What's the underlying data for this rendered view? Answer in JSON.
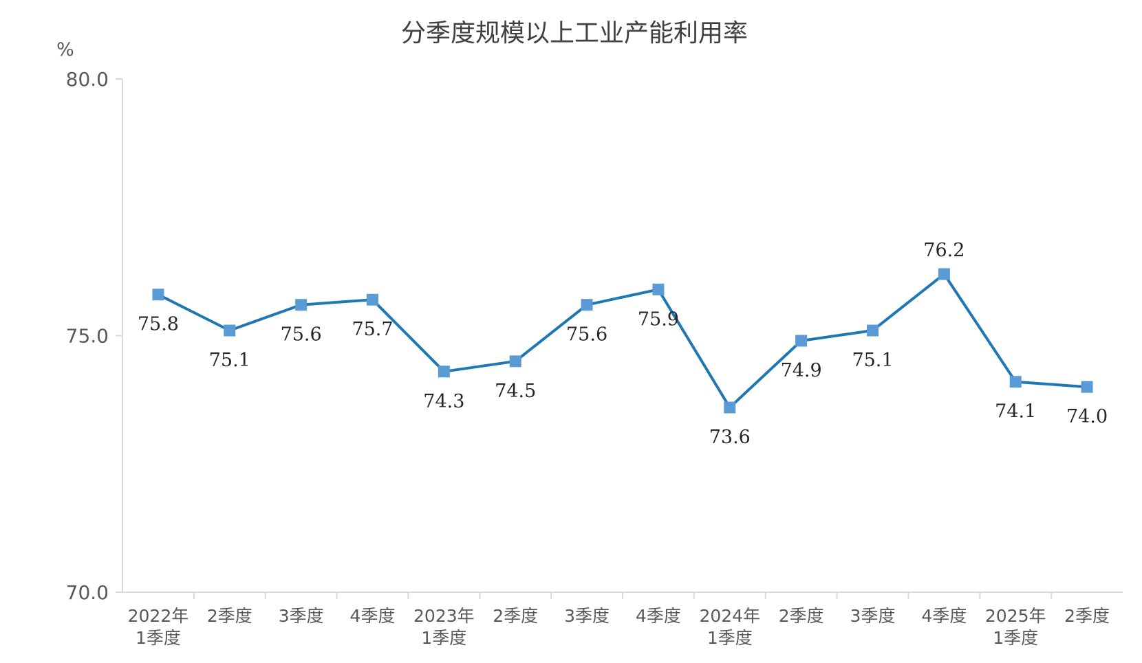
{
  "chart_data": {
    "type": "line",
    "title": "分季度规模以上工业产能利用率",
    "unit": "%",
    "xlabel": "",
    "ylabel": "",
    "ylim": [
      70,
      80
    ],
    "y_ticks": [
      "80.0",
      "75.0",
      "70.0"
    ],
    "grid": false,
    "legend": "none",
    "categories": [
      [
        "2022年",
        "1季度"
      ],
      [
        "2季度"
      ],
      [
        "3季度"
      ],
      [
        "4季度"
      ],
      [
        "2023年",
        "1季度"
      ],
      [
        "2季度"
      ],
      [
        "3季度"
      ],
      [
        "4季度"
      ],
      [
        "2024年",
        "1季度"
      ],
      [
        "2季度"
      ],
      [
        "3季度"
      ],
      [
        "4季度"
      ],
      [
        "2025年",
        "1季度"
      ],
      [
        "2季度"
      ]
    ],
    "series": [
      {
        "values": [
          75.8,
          75.1,
          75.6,
          75.7,
          74.3,
          74.5,
          75.6,
          75.9,
          73.6,
          74.9,
          75.1,
          76.2,
          74.1,
          74.0
        ],
        "data_labels": [
          "75.8",
          "75.1",
          "75.6",
          "75.7",
          "74.3",
          "74.5",
          "75.6",
          "75.9",
          "73.6",
          "74.9",
          "75.1",
          "76.2",
          "74.1",
          "74.0"
        ],
        "label_position": [
          "below",
          "below",
          "below",
          "below",
          "below",
          "below",
          "below",
          "below",
          "below",
          "below",
          "below",
          "above",
          "below",
          "below"
        ],
        "color": "#1f77b4",
        "marker_color": "#5b9bd5"
      }
    ],
    "axis_color": "#d9d9d9"
  }
}
